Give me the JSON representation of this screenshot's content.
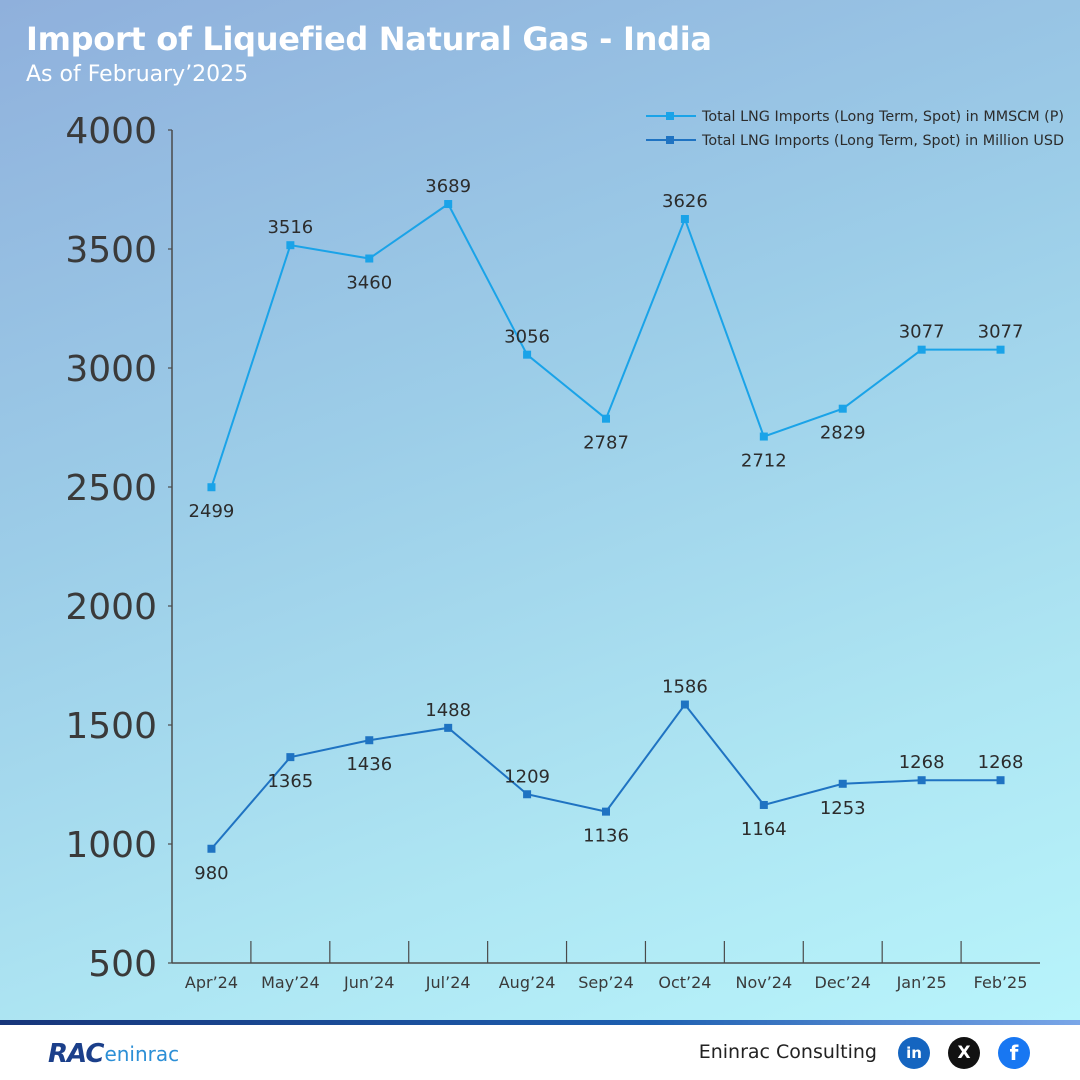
{
  "title": "Import of Liquefied Natural Gas - India",
  "subtitle": "As of February’2025",
  "chart_data": {
    "type": "line",
    "categories": [
      "Apr’24",
      "May’24",
      "Jun’24",
      "Jul’24",
      "Aug’24",
      "Sep’24",
      "Oct’24",
      "Nov’24",
      "Dec’24",
      "Jan’25",
      "Feb’25"
    ],
    "series": [
      {
        "name": "Total LNG Imports (Long Term, Spot) in MMSCM (P)",
        "values": [
          2499,
          3516,
          3460,
          3689,
          3056,
          2787,
          3626,
          2712,
          2829,
          3077,
          3077
        ],
        "color": "#1aa3e8"
      },
      {
        "name": "Total LNG Imports (Long Term, Spot) in Million USD",
        "values": [
          980,
          1365,
          1436,
          1488,
          1209,
          1136,
          1586,
          1164,
          1253,
          1268,
          1268
        ],
        "color": "#1f73c2"
      }
    ],
    "y_ticks": [
      4000,
      3500,
      3000,
      2500,
      2000,
      1500,
      1000,
      500
    ],
    "ylim": [
      500,
      4000
    ],
    "grid": false,
    "legend_position": "top-right"
  },
  "footer": {
    "logo_rac": "RAC",
    "logo_eninrac": "eninrac",
    "brand": "Eninrac Consulting",
    "social": [
      {
        "icon": "linkedin-icon",
        "label": "in"
      },
      {
        "icon": "x-icon",
        "label": "X"
      },
      {
        "icon": "facebook-icon",
        "label": "f"
      }
    ]
  }
}
